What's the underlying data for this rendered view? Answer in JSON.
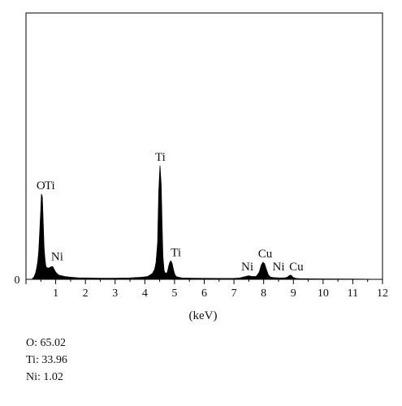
{
  "chart_data": {
    "type": "line",
    "title": "",
    "xlabel": "(keV)",
    "ylabel": "",
    "xlim": [
      0.2,
      12
    ],
    "ylim": [
      0,
      100
    ],
    "x_ticks": [
      "1",
      "2",
      "3",
      "4",
      "5",
      "6",
      "7",
      "8",
      "9",
      "10",
      "11",
      "12"
    ],
    "y_tick_labels": [
      "0"
    ],
    "grid": false,
    "legend": "none",
    "series": [
      {
        "color": "#000000",
        "fill": true,
        "x": [
          0.2,
          0.28,
          0.33,
          0.36,
          0.4,
          0.43,
          0.46,
          0.5,
          0.52,
          0.55,
          0.58,
          0.61,
          0.64,
          0.67,
          0.72,
          0.78,
          0.86,
          0.9,
          0.95,
          1.0,
          1.1,
          1.3,
          1.5,
          1.8,
          2.0,
          2.5,
          3.0,
          3.5,
          3.9,
          4.1,
          4.25,
          4.33,
          4.38,
          4.43,
          4.47,
          4.51,
          4.55,
          4.58,
          4.61,
          4.65,
          4.7,
          4.76,
          4.8,
          4.84,
          4.88,
          4.92,
          4.96,
          5.0,
          5.05,
          5.12,
          5.25,
          5.6,
          6.0,
          6.5,
          7.0,
          7.2,
          7.4,
          7.5,
          7.6,
          7.75,
          7.85,
          7.92,
          7.98,
          8.03,
          8.09,
          8.16,
          8.24,
          8.35,
          8.5,
          8.7,
          8.8,
          8.86,
          8.9,
          8.94,
          8.98,
          9.03,
          9.1,
          9.2,
          9.4,
          10.0,
          11.0,
          12.0
        ],
        "y": [
          0,
          2,
          5,
          8,
          13,
          20,
          32,
          50,
          60,
          58,
          40,
          22,
          14,
          9,
          8,
          8,
          9,
          9,
          7,
          5,
          3,
          2,
          1.5,
          1,
          1,
          0.8,
          0.8,
          1,
          1.5,
          2,
          4,
          7,
          12,
          26,
          62,
          80,
          66,
          38,
          16,
          6,
          4,
          5,
          9,
          12,
          13,
          11,
          7,
          4,
          2,
          1.5,
          1,
          0.8,
          0.7,
          0.6,
          0.6,
          1,
          2,
          2.5,
          2,
          2,
          5,
          10,
          12,
          11,
          7,
          3,
          1.5,
          1.2,
          1,
          1,
          1.5,
          2.5,
          3,
          2.5,
          1.5,
          1,
          0.6,
          0.5,
          0.4,
          0.3,
          0.2,
          0
        ]
      }
    ],
    "annotations": [
      {
        "text": "O",
        "x": 0.5,
        "y": 60
      },
      {
        "text": "Ti",
        "x": 0.8,
        "y": 60
      },
      {
        "text": "Ni",
        "x": 1.05,
        "y": 10
      },
      {
        "text": "Ti",
        "x": 4.52,
        "y": 80
      },
      {
        "text": "Ti",
        "x": 5.05,
        "y": 13
      },
      {
        "text": "Ni",
        "x": 7.45,
        "y": 3
      },
      {
        "text": "Cu",
        "x": 8.05,
        "y": 12
      },
      {
        "text": "Ni",
        "x": 8.5,
        "y": 3
      },
      {
        "text": "Cu",
        "x": 9.1,
        "y": 3
      }
    ]
  },
  "composition": [
    {
      "text": "O: 65.02"
    },
    {
      "text": "Ti: 33.96"
    },
    {
      "text": "Ni: 1.02"
    }
  ]
}
